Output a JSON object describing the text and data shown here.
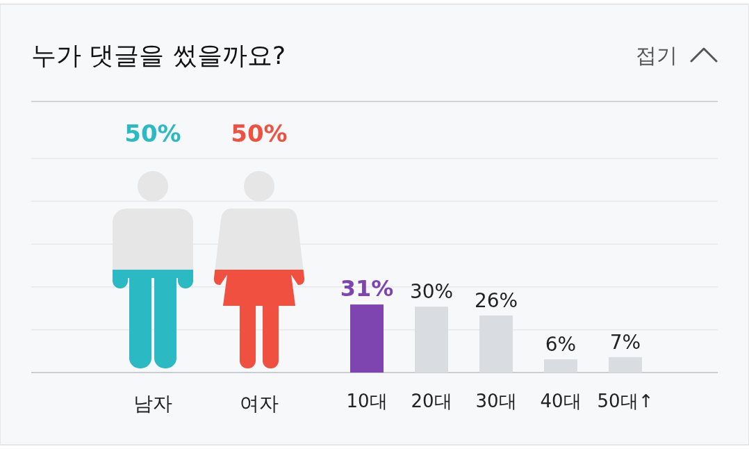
{
  "chart_data": [
    {
      "type": "other",
      "title": "누가 댓글을 썼을까요?",
      "annotations": [
        "접기"
      ],
      "categories": [
        "남자",
        "여자"
      ],
      "values": [
        50,
        50
      ],
      "value_labels": [
        "50%",
        "50%"
      ],
      "colors": [
        "#2bb9c4",
        "#f0503f"
      ]
    },
    {
      "type": "bar",
      "categories": [
        "10대",
        "20대",
        "30대",
        "40대",
        "50대↑"
      ],
      "values": [
        31,
        30,
        26,
        6,
        7
      ],
      "value_labels": [
        "31%",
        "30%",
        "26%",
        "6%",
        "7%"
      ],
      "colors": [
        "#7e44b0",
        "#d9dde1",
        "#d9dde1",
        "#d9dde1",
        "#d9dde1"
      ],
      "ylim": [
        0,
        97.5
      ],
      "yticks": [
        {
          "value": 0,
          "label": null
        },
        {
          "value": 19.5,
          "label": null
        },
        {
          "value": 39,
          "label": null
        },
        {
          "value": 58.5,
          "label": null
        },
        {
          "value": 78,
          "label": null
        },
        {
          "value": 97.5,
          "label": null
        }
      ],
      "grid": "y"
    }
  ]
}
